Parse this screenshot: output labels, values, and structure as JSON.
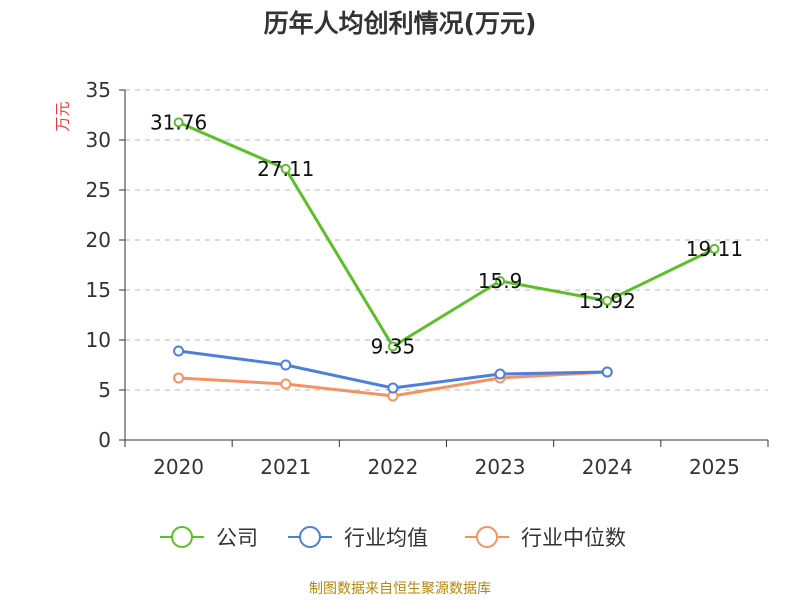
{
  "chart_data": {
    "type": "line",
    "title": "历年人均创利情况(万元)",
    "ylabel": "万元",
    "ylim": [
      0,
      35
    ],
    "yticks": [
      0,
      5,
      10,
      15,
      20,
      25,
      30,
      35
    ],
    "categories": [
      "2020",
      "2021",
      "2022",
      "2023",
      "2024",
      "2025"
    ],
    "series": [
      {
        "name": "公司",
        "color": "#5cbf2a",
        "show_labels": true,
        "values": [
          31.76,
          27.11,
          9.35,
          15.9,
          13.92,
          19.11
        ]
      },
      {
        "name": "行业均值",
        "color": "#4e7fdc",
        "show_labels": false,
        "values": [
          8.9,
          7.5,
          5.2,
          6.6,
          6.8,
          null
        ]
      },
      {
        "name": "行业中位数",
        "color": "#f59262",
        "show_labels": false,
        "values": [
          6.2,
          5.6,
          4.4,
          6.2,
          6.8,
          null
        ]
      }
    ],
    "grid": true,
    "legend_position": "bottom"
  },
  "source_note": "制图数据来自恒生聚源数据库"
}
